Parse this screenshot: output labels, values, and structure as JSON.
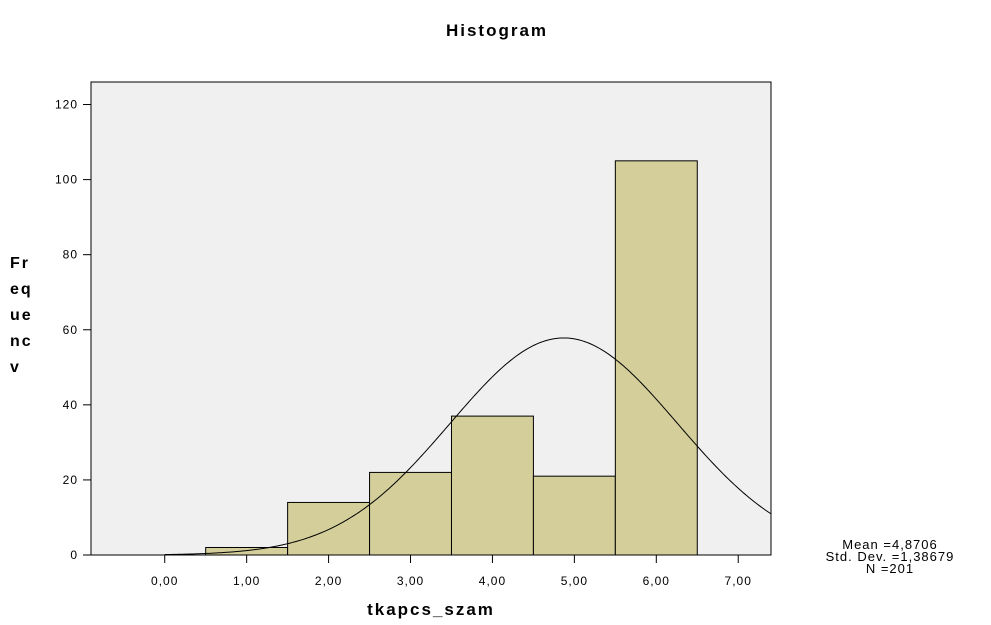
{
  "chart_data": {
    "type": "bar",
    "title": "Histogram",
    "xlabel": "tkapcs_szam",
    "ylabel_lines": [
      "Fr",
      "eq",
      "ue",
      "nc",
      "v"
    ],
    "bin_width": 1,
    "bins": [
      {
        "center": 0,
        "value": 0
      },
      {
        "center": 1,
        "value": 2
      },
      {
        "center": 2,
        "value": 14
      },
      {
        "center": 3,
        "value": 22
      },
      {
        "center": 4,
        "value": 37
      },
      {
        "center": 5,
        "value": 21
      },
      {
        "center": 6,
        "value": 105
      }
    ],
    "x_ticks": [
      0,
      1,
      2,
      3,
      4,
      5,
      6,
      7
    ],
    "x_tick_labels": [
      "0,00",
      "1,00",
      "2,00",
      "3,00",
      "4,00",
      "5,00",
      "6,00",
      "7,00"
    ],
    "y_ticks": [
      0,
      20,
      40,
      60,
      80,
      100,
      120
    ],
    "y_tick_labels": [
      "0",
      "20",
      "40",
      "60",
      "80",
      "100",
      "120"
    ],
    "xlim": [
      -0.9,
      7.4
    ],
    "ylim": [
      0,
      126
    ],
    "normal_curve": {
      "mean": 4.8706,
      "std_dev": 1.38679,
      "n": 201
    },
    "stats_lines": [
      "Mean =4,8706",
      "Std. Dev. =1,38679",
      "N =201"
    ],
    "colors": {
      "plot_bg": "#f0f0f0",
      "bar_fill": "#d3ce9a",
      "bar_stroke": "#000000",
      "curve": "#000000"
    },
    "grid": false
  }
}
